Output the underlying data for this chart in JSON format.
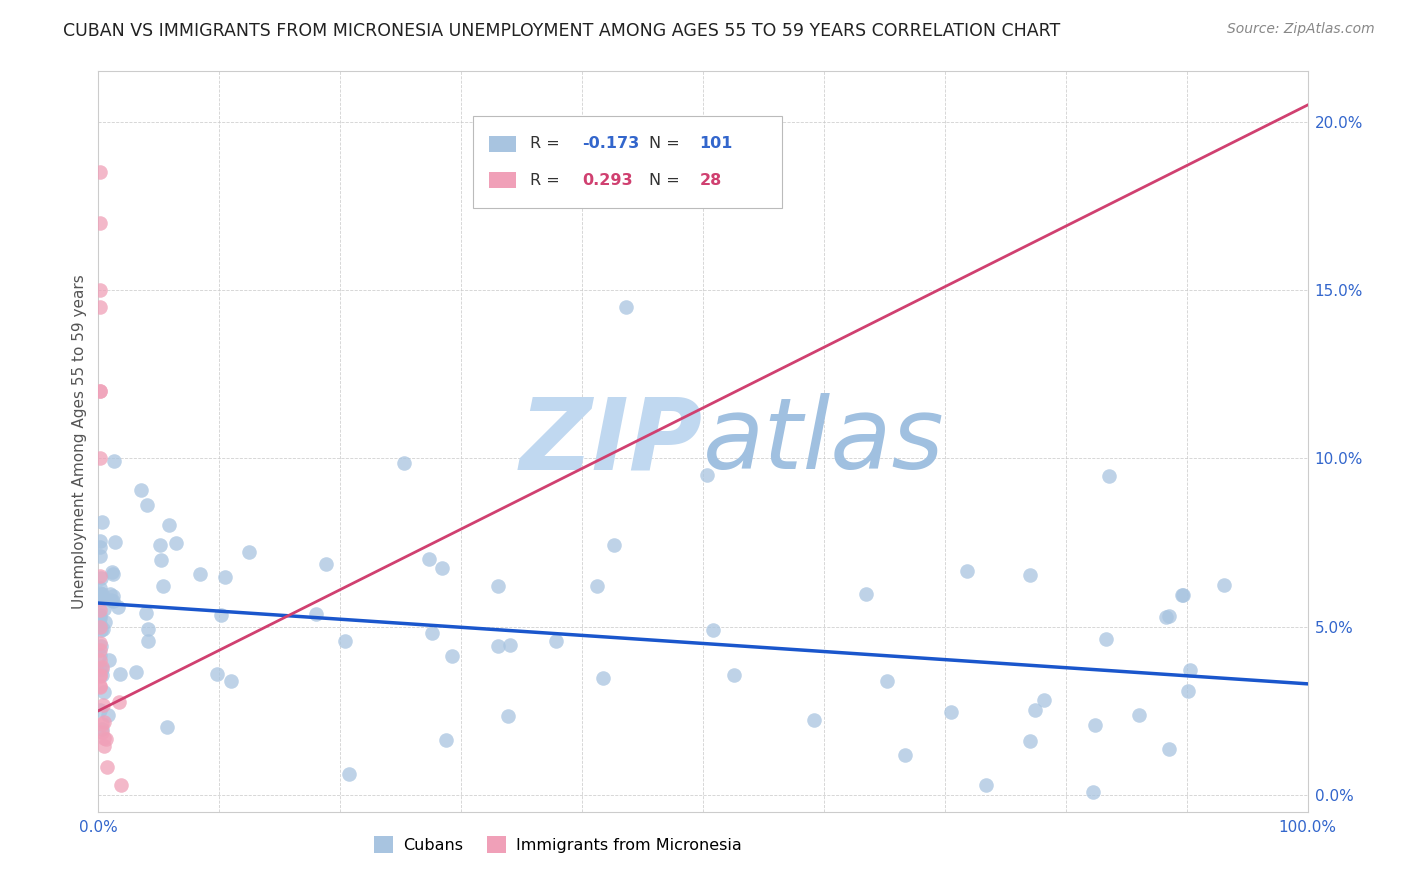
{
  "title": "CUBAN VS IMMIGRANTS FROM MICRONESIA UNEMPLOYMENT AMONG AGES 55 TO 59 YEARS CORRELATION CHART",
  "source": "Source: ZipAtlas.com",
  "ylabel": "Unemployment Among Ages 55 to 59 years",
  "xlim": [
    0,
    1.0
  ],
  "ylim": [
    -0.005,
    0.215
  ],
  "xticks": [
    0.0,
    0.1,
    0.2,
    0.3,
    0.4,
    0.5,
    0.6,
    0.7,
    0.8,
    0.9,
    1.0
  ],
  "xticklabels": [
    "0.0%",
    "",
    "",
    "",
    "",
    "",
    "",
    "",
    "",
    "",
    "100.0%"
  ],
  "yticks": [
    0.0,
    0.05,
    0.1,
    0.15,
    0.2
  ],
  "yticklabels_right": [
    "0.0%",
    "5.0%",
    "10.0%",
    "15.0%",
    "20.0%"
  ],
  "cubans_R": -0.173,
  "cubans_N": 101,
  "micronesia_R": 0.293,
  "micronesia_N": 28,
  "cubans_color": "#a8c4e0",
  "micronesia_color": "#f0a0b8",
  "cubans_trend_color": "#1a56cc",
  "micronesia_trend_color": "#d04070",
  "watermark": "ZIPatlas",
  "watermark_color_zip": "#b8d4ee",
  "watermark_color_atlas": "#88aacc",
  "blue_trend_y0": 0.057,
  "blue_trend_y1": 0.033,
  "pink_trend_x0": 0.0,
  "pink_trend_y0": 0.025,
  "pink_trend_x1": 1.0,
  "pink_trend_y1": 0.205
}
